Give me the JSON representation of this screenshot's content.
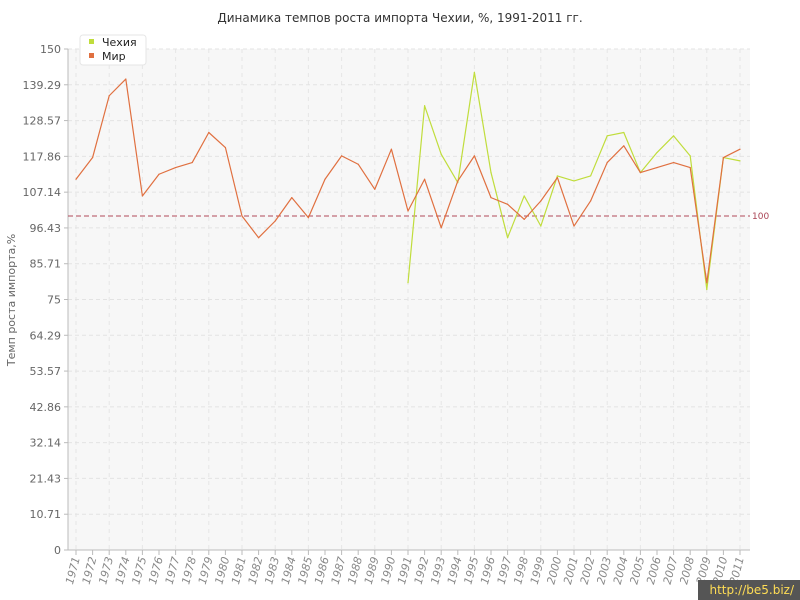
{
  "watermark": "http://be5.biz/",
  "chart_data": {
    "type": "line",
    "title": "Динамика темпов роста импорта Чехии, %, 1991-2011 гг.",
    "xlabel": "",
    "ylabel": "Темп роста импорта,%",
    "ylim": [
      0,
      150
    ],
    "yticks": [
      "0",
      "10.71",
      "21.43",
      "32.14",
      "42.86",
      "53.57",
      "64.29",
      "75",
      "85.71",
      "96.43",
      "107.14",
      "117.86",
      "128.57",
      "139.29",
      "150"
    ],
    "grid": true,
    "legend_position": "top-left",
    "reference_line": {
      "value": 100,
      "label": "100",
      "color": "#b04a5a"
    },
    "categories": [
      "1971",
      "1972",
      "1973",
      "1974",
      "1975",
      "1976",
      "1977",
      "1978",
      "1979",
      "1980",
      "1981",
      "1982",
      "1983",
      "1984",
      "1985",
      "1986",
      "1987",
      "1988",
      "1989",
      "1990",
      "1991",
      "1992",
      "1993",
      "1994",
      "1995",
      "1996",
      "1997",
      "1998",
      "1999",
      "2000",
      "2001",
      "2002",
      "2003",
      "2004",
      "2005",
      "2006",
      "2007",
      "2008",
      "2009",
      "2010",
      "2011"
    ],
    "series": [
      {
        "name": "Чехия",
        "color": "#c0dd3c",
        "values": [
          null,
          null,
          null,
          null,
          null,
          null,
          null,
          null,
          null,
          null,
          null,
          null,
          null,
          null,
          null,
          null,
          null,
          null,
          null,
          null,
          80,
          133,
          118.5,
          110,
          143,
          113,
          93.5,
          106,
          97,
          112,
          110.5,
          112,
          124,
          125,
          113,
          119,
          124,
          118,
          78,
          117.5,
          116.5
        ]
      },
      {
        "name": "Мир",
        "color": "#e07040",
        "values": [
          111,
          117.5,
          136,
          141,
          106,
          112.5,
          114.5,
          116,
          125,
          120.5,
          100,
          93.5,
          98.5,
          105.5,
          99.5,
          111,
          118,
          115.5,
          108,
          120,
          101.5,
          111,
          96.5,
          110.5,
          118,
          105.5,
          103.5,
          99,
          104.5,
          111.5,
          97,
          104.5,
          116,
          121,
          113,
          114.5,
          116,
          114.5,
          80,
          117.5,
          120
        ]
      }
    ]
  }
}
